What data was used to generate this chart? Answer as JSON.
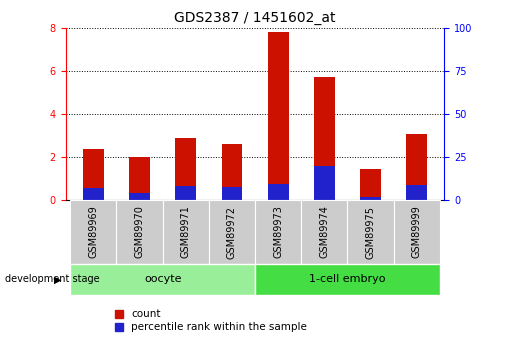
{
  "title": "GDS2387 / 1451602_at",
  "samples": [
    "GSM89969",
    "GSM89970",
    "GSM89971",
    "GSM89972",
    "GSM89973",
    "GSM89974",
    "GSM89975",
    "GSM89999"
  ],
  "count_values": [
    2.35,
    2.0,
    2.9,
    2.6,
    7.8,
    5.7,
    1.45,
    3.05
  ],
  "percentile_values": [
    7.0,
    4.0,
    8.0,
    7.5,
    9.5,
    20.0,
    2.0,
    8.5
  ],
  "groups": [
    {
      "label": "oocyte",
      "color": "#99EE99",
      "start": 0,
      "end": 4
    },
    {
      "label": "1-cell embryo",
      "color": "#44DD44",
      "start": 4,
      "end": 8
    }
  ],
  "ylim_left": [
    0,
    8
  ],
  "ylim_right": [
    0,
    100
  ],
  "yticks_left": [
    0,
    2,
    4,
    6,
    8
  ],
  "yticks_right": [
    0,
    25,
    50,
    75,
    100
  ],
  "bar_color_red": "#CC1100",
  "bar_color_blue": "#2222CC",
  "bar_width": 0.45,
  "title_fontsize": 10,
  "axis_fontsize": 7,
  "legend_fontsize": 7.5,
  "tick_gray": "#CCCCCC",
  "dev_stage_label": "development stage",
  "legend_count": "count",
  "legend_percentile": "percentile rank within the sample"
}
